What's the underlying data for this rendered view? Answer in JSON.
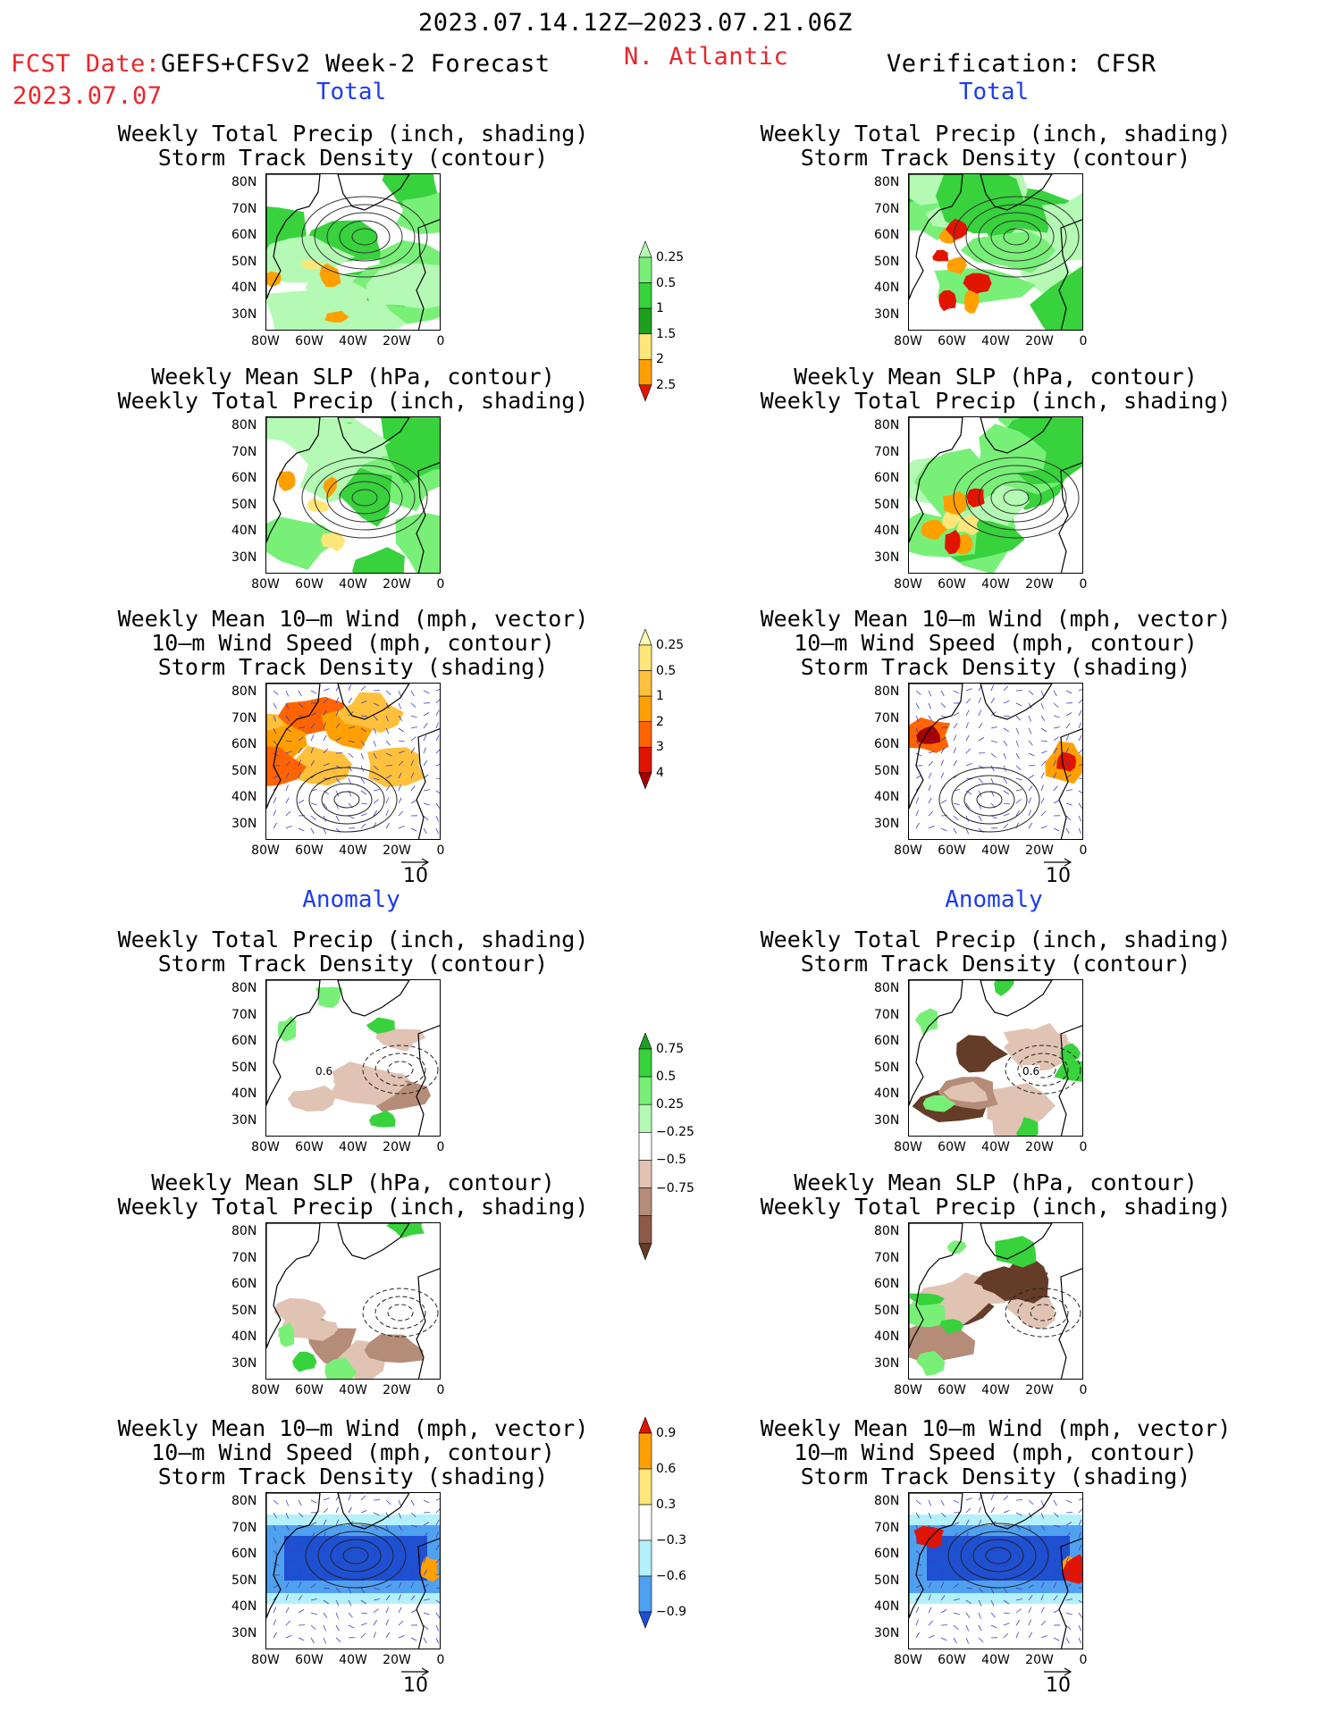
{
  "header": {
    "period": "2023.07.14.12Z–2023.07.21.06Z",
    "fcst_label": "FCST Date:",
    "fcst_model": "GEFS+CFSv2 Week-2 Forecast",
    "fcst_date": "2023.07.07",
    "region": "N. Atlantic",
    "verification": "Verification: CFSR"
  },
  "sections": {
    "total": "Total",
    "anomaly": "Anomaly"
  },
  "titles": {
    "precip_track": [
      "Weekly Total Precip (inch, shading)",
      "Storm Track Density (contour)"
    ],
    "slp_precip": [
      "Weekly Mean SLP (hPa, contour)",
      "Weekly Total Precip (inch, shading)"
    ],
    "wind_track": [
      "Weekly Mean 10–m Wind (mph, vector)",
      "10–m Wind Speed (mph, contour)",
      "Storm Track Density (shading)"
    ]
  },
  "axes": {
    "lat_ticks": [
      "80N",
      "70N",
      "60N",
      "50N",
      "40N",
      "30N"
    ],
    "lon_ticks": [
      "80W",
      "60W",
      "40W",
      "20W",
      "0"
    ]
  },
  "vector_ref": "10",
  "contour_labels": {
    "anom_track": "0.6"
  },
  "colorbars": {
    "precip_total": {
      "labels": [
        "0.25",
        "0.5",
        "1",
        "1.5",
        "2",
        "2.5"
      ],
      "colors": [
        "#b4fab4",
        "#78f078",
        "#37d23c",
        "#1ea01e",
        "#ffe678",
        "#ffa000",
        "#e11400"
      ]
    },
    "track_total": {
      "labels": [
        "0.25",
        "0.5",
        "1",
        "2",
        "3",
        "4"
      ],
      "colors": [
        "#fffab4",
        "#ffe678",
        "#ffc03c",
        "#ffa000",
        "#ff6400",
        "#e11400",
        "#a50000"
      ]
    },
    "precip_anom": {
      "labels": [
        "0.75",
        "0.5",
        "0.25",
        "−0.25",
        "−0.5",
        "−0.75"
      ],
      "colors": [
        "#1ea01e",
        "#37d23c",
        "#78f078",
        "#b4fab4",
        "#ffffff",
        "#e1c3b4",
        "#b48c78",
        "#8c5a46",
        "#643c28"
      ]
    },
    "track_anom": {
      "labels": [
        "0.9",
        "0.6",
        "0.3",
        "−0.3",
        "−0.6",
        "−0.9"
      ],
      "colors": [
        "#e11400",
        "#ffa000",
        "#ffe678",
        "#ffffff",
        "#b4f0fa",
        "#50a0f0",
        "#1e50d2"
      ]
    }
  }
}
